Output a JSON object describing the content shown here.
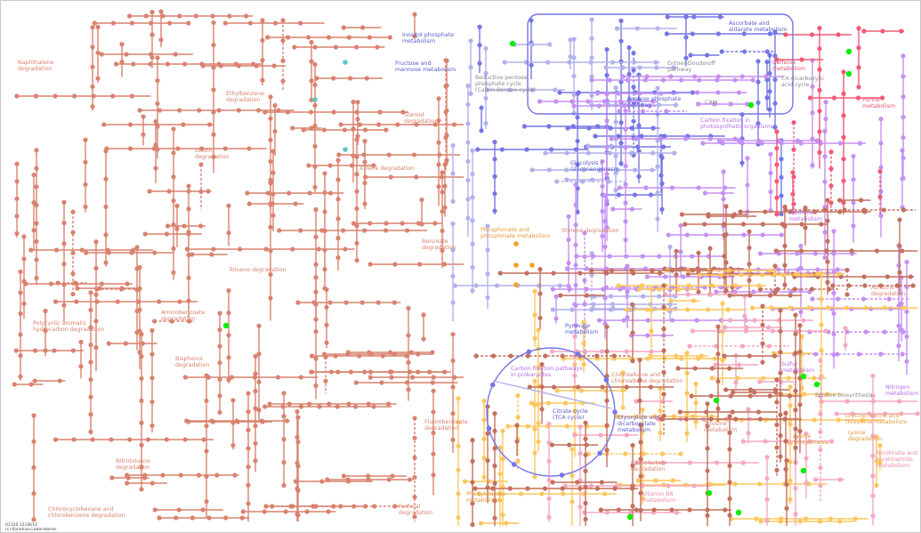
{
  "map": {
    "pathways": [
      {
        "id": "naphthalene",
        "label": "Naphthalene\ndegradation"
      },
      {
        "id": "inositol",
        "label": "Inositol phosphate\nmetabolism"
      },
      {
        "id": "fructose",
        "label": "Fructose and\nmannose metabolism"
      },
      {
        "id": "ethylbenzene",
        "label": "Ethylbenzene\ndegradation"
      },
      {
        "id": "steroid",
        "label": "Steroid\ndegradation"
      },
      {
        "id": "dioxin",
        "label": "Dioxin\ndegradation"
      },
      {
        "id": "xylene",
        "label": "Xylene degradation"
      },
      {
        "id": "benzoate",
        "label": "Benzoate\ndegradation"
      },
      {
        "id": "toluene",
        "label": "Toluene degradation"
      },
      {
        "id": "aminobenzoate",
        "label": "Aminobenzoate\ndegradation"
      },
      {
        "id": "pah",
        "label": "Polycyclic aromatic\nhydrocarbon degradation"
      },
      {
        "id": "bisphenol",
        "label": "Bisphenol\ndegradation"
      },
      {
        "id": "nitrotoluene",
        "label": "Nitrotoluene\ndegradation"
      },
      {
        "id": "chlorocyclohexane",
        "label": "Chlorocyclohexane and\nchlorobenzene degradation"
      },
      {
        "id": "fluorobenzoate",
        "label": "Fluorobenzoate\ndegradation"
      },
      {
        "id": "furfural",
        "label": "Furfural\ndegradation"
      },
      {
        "id": "calvin",
        "label": "Reductive pentose\nphosphate cycle\n(Calvin-Benson cycle)"
      },
      {
        "id": "ascorbate",
        "label": "Ascorbate and\naldarate metabolism"
      },
      {
        "id": "entner",
        "label": "Entner-Doudoroff\npathway"
      },
      {
        "id": "caffeine",
        "label": "Caffeine\nmetabolism"
      },
      {
        "id": "c4",
        "label": "C4-dicarboxylic\nacid cycle"
      },
      {
        "id": "cam",
        "label": "CAM"
      },
      {
        "id": "pentose",
        "label": "Pentose phosphate\npathway"
      },
      {
        "id": "purine",
        "label": "Purine\nmetabolism"
      },
      {
        "id": "carbonfix_photo",
        "label": "Carbon fixation in\nphotosynthetic organisms"
      },
      {
        "id": "glycolysis",
        "label": "Glycolysis /\nGluconeogenesis"
      },
      {
        "id": "methane",
        "label": "Methane\nmetabolism"
      },
      {
        "id": "phosphonate",
        "label": "Phosphonate and\nphosphinate metabolism"
      },
      {
        "id": "styrene",
        "label": "Styrene degradation"
      },
      {
        "id": "atrazine",
        "label": "Atrazine\ndegradation"
      },
      {
        "id": "pyruvate",
        "label": "Pyruvate\nmetabolism"
      },
      {
        "id": "sulfur",
        "label": "Sulfur\nmetabolism"
      },
      {
        "id": "carbonfix_prok",
        "label": "Carbon fixation pathways\nin prokaryotes"
      },
      {
        "id": "chloroalkane",
        "label": "Chloroalkane and\nchloroalkene degradation"
      },
      {
        "id": "nitrogen",
        "label": "Nitrogen\nmetabolism"
      },
      {
        "id": "ectoine",
        "label": "Ectoine biosynthesis"
      },
      {
        "id": "tca",
        "label": "Citrate cycle\n(TCA cycle)"
      },
      {
        "id": "glyoxylate",
        "label": "Glyoxylate and\ndicarboxylate\nmetabolism"
      },
      {
        "id": "glycine",
        "label": "Glycine, serine and\nthreonine metabolism"
      },
      {
        "id": "tyrosine",
        "label": "Tyrosine\nmetabolism"
      },
      {
        "id": "lysine_bio",
        "label": "Lysine\nbiosynthesis"
      },
      {
        "id": "lysine_deg",
        "label": "Lysine\ndegradation"
      },
      {
        "id": "nicotinate",
        "label": "Nicotinate and\nnicotinamide\nmetabolism"
      },
      {
        "id": "caprolactam",
        "label": "Caprolactam\ndegradation"
      },
      {
        "id": "phenylalanine",
        "label": "Phenylalanine\nmetabolism"
      },
      {
        "id": "vitaminb6",
        "label": "Vitamin B6\nmetabolism"
      }
    ],
    "footer": {
      "line1": "01120 12/28/10",
      "line2": "(c) Kanehisa Laboratories"
    },
    "colors": {
      "xenobiotics": "#d9826f",
      "carbohydrate": "#7676e6",
      "carbohydrate_light": "#b2b2ec",
      "energy": "#c690f2",
      "nucleotide": "#f05a78",
      "amino_acid": "#fcc75e",
      "cofactor": "#f5a9c2",
      "amino_acid_other": "#c4705e",
      "highlight": "#00ee00",
      "phosphonate": "#f5a11c",
      "teal": "#5ec8c0"
    }
  }
}
